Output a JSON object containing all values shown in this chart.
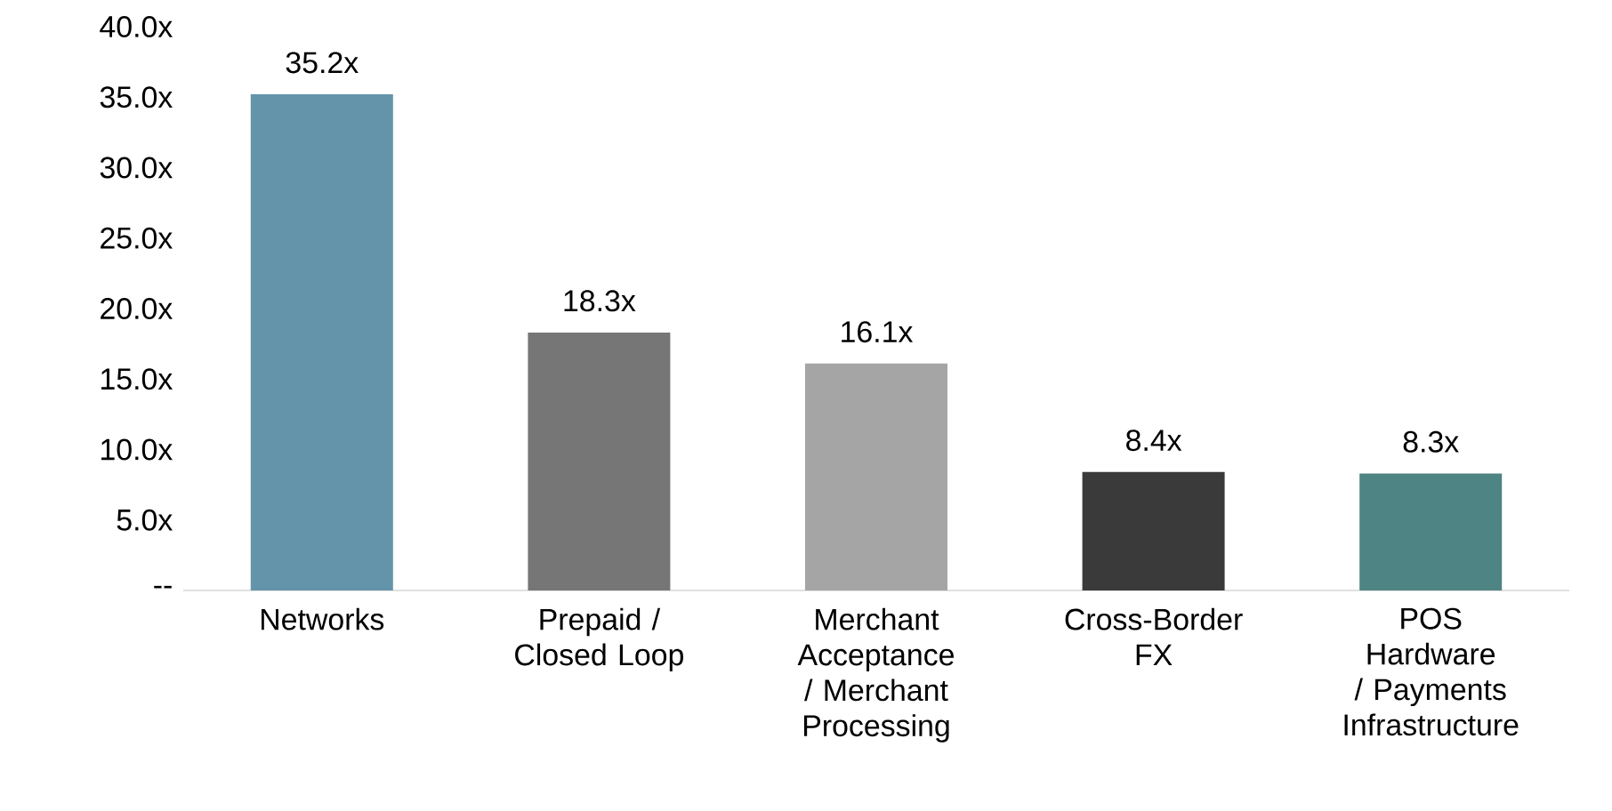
{
  "chart_data": {
    "type": "bar",
    "categories": [
      "Networks",
      "Prepaid / Closed Loop",
      "Merchant Acceptance / Merchant Processing",
      "Cross-Border FX",
      "POS Hardware / Payments Infrastructure"
    ],
    "values": [
      35.2,
      18.3,
      16.1,
      8.4,
      8.3
    ],
    "value_labels": [
      "35.2x",
      "18.3x",
      "16.1x",
      "8.4x",
      "8.3x"
    ],
    "colors": [
      "#6494aa",
      "#767676",
      "#a5a5a5",
      "#3a3a3a",
      "#4e8483"
    ],
    "ylim": [
      0,
      40
    ],
    "yticks": [
      {
        "value": 0,
        "label": "--"
      },
      {
        "value": 5,
        "label": "5.0x"
      },
      {
        "value": 10,
        "label": "10.0x"
      },
      {
        "value": 15,
        "label": "15.0x"
      },
      {
        "value": 20,
        "label": "20.0x"
      },
      {
        "value": 25,
        "label": "25.0x"
      },
      {
        "value": 30,
        "label": "30.0x"
      },
      {
        "value": 35,
        "label": "35.0x"
      },
      {
        "value": 40,
        "label": "40.0x"
      }
    ],
    "grid": false
  }
}
